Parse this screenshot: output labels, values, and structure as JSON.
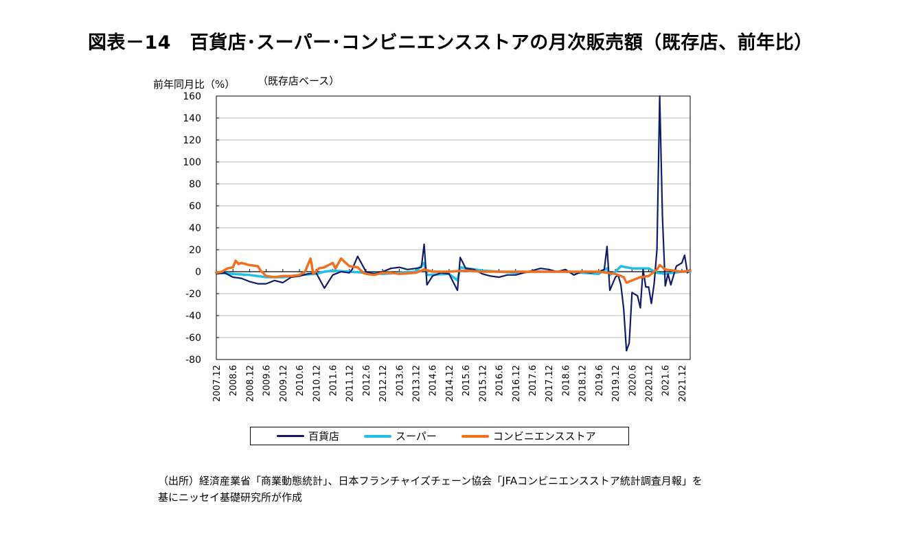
{
  "title": "図表－14　百貨店･スーパー･コンビニエンスストアの月次販売額（既存店、前年比）",
  "source": {
    "line1": "（出所）経済産業省「商業動態統計」、日本フランチャイズチェーン協会「JFAコンビニエンスストア統計調査月報」を",
    "line2": "基にニッセイ基礎研究所が作成"
  },
  "chart_data": {
    "type": "line",
    "ylabel": "前年同月比（%）",
    "annotation": "（既存店ベース）",
    "ylim": [
      -80,
      160
    ],
    "yticks": [
      160,
      140,
      120,
      100,
      80,
      60,
      40,
      20,
      0,
      -20,
      -40,
      -60,
      -80
    ],
    "xlim": [
      "2007.12",
      "2022.3"
    ],
    "x_tick_labels": [
      "2007.12",
      "2008.6",
      "2008.12",
      "2009.6",
      "2009.12",
      "2010.6",
      "2010.12",
      "2011.6",
      "2011.12",
      "2012.6",
      "2012.12",
      "2013.6",
      "2013.12",
      "2014.6",
      "2014.12",
      "2015.6",
      "2015.12",
      "2016.6",
      "2016.12",
      "2017.6",
      "2017.12",
      "2018.6",
      "2018.12",
      "2019.6",
      "2019.12",
      "2020.6",
      "2020.12",
      "2021.6",
      "2021.12"
    ],
    "grid": true,
    "legend_position": "bottom",
    "series": [
      {
        "name": "百貨店",
        "color": "#0f1a6b",
        "points": [
          [
            "2007.12",
            -2
          ],
          [
            "2008.3",
            -1
          ],
          [
            "2008.6",
            -5
          ],
          [
            "2008.9",
            -6
          ],
          [
            "2008.12",
            -9
          ],
          [
            "2009.3",
            -11
          ],
          [
            "2009.6",
            -11
          ],
          [
            "2009.9",
            -8
          ],
          [
            "2009.12",
            -10
          ],
          [
            "2010.3",
            -5
          ],
          [
            "2010.6",
            -4
          ],
          [
            "2010.9",
            -2
          ],
          [
            "2010.12",
            -1
          ],
          [
            "2011.3",
            -15
          ],
          [
            "2011.6",
            -3
          ],
          [
            "2011.9",
            0
          ],
          [
            "2011.12",
            -1
          ],
          [
            "2012.1",
            2
          ],
          [
            "2012.3",
            14
          ],
          [
            "2012.6",
            0
          ],
          [
            "2012.9",
            -2
          ],
          [
            "2012.12",
            0
          ],
          [
            "2013.3",
            3
          ],
          [
            "2013.6",
            4
          ],
          [
            "2013.9",
            2
          ],
          [
            "2013.12",
            3
          ],
          [
            "2014.2",
            4
          ],
          [
            "2014.3",
            25
          ],
          [
            "2014.4",
            -12
          ],
          [
            "2014.6",
            -4
          ],
          [
            "2014.9",
            -1
          ],
          [
            "2014.12",
            -2
          ],
          [
            "2015.3",
            -17
          ],
          [
            "2015.4",
            13
          ],
          [
            "2015.6",
            3
          ],
          [
            "2015.9",
            2
          ],
          [
            "2015.12",
            -2
          ],
          [
            "2016.3",
            -4
          ],
          [
            "2016.6",
            -5
          ],
          [
            "2016.9",
            -3
          ],
          [
            "2016.12",
            -3
          ],
          [
            "2017.3",
            -1
          ],
          [
            "2017.6",
            1
          ],
          [
            "2017.9",
            3
          ],
          [
            "2017.12",
            2
          ],
          [
            "2018.3",
            0
          ],
          [
            "2018.6",
            2
          ],
          [
            "2018.9",
            -3
          ],
          [
            "2018.12",
            0
          ],
          [
            "2019.3",
            -1
          ],
          [
            "2019.6",
            0
          ],
          [
            "2019.8",
            2
          ],
          [
            "2019.9",
            23
          ],
          [
            "2019.10",
            -17
          ],
          [
            "2019.12",
            -5
          ],
          [
            "2020.1",
            -3
          ],
          [
            "2020.2",
            -12
          ],
          [
            "2020.3",
            -34
          ],
          [
            "2020.4",
            -72
          ],
          [
            "2020.5",
            -65
          ],
          [
            "2020.6",
            -19
          ],
          [
            "2020.8",
            -22
          ],
          [
            "2020.9",
            -33
          ],
          [
            "2020.10",
            2
          ],
          [
            "2020.11",
            -14
          ],
          [
            "2020.12",
            -14
          ],
          [
            "2021.1",
            -29
          ],
          [
            "2021.2",
            -11
          ],
          [
            "2021.3",
            20
          ],
          [
            "2021.4",
            160
          ],
          [
            "2021.5",
            50
          ],
          [
            "2021.6",
            -13
          ],
          [
            "2021.7",
            -2
          ],
          [
            "2021.8",
            -12
          ],
          [
            "2021.10",
            5
          ],
          [
            "2021.12",
            8
          ],
          [
            "2022.1",
            15
          ],
          [
            "2022.2",
            -1
          ],
          [
            "2022.3",
            2
          ]
        ]
      },
      {
        "name": "スーパー",
        "color": "#1fbfe6",
        "points": [
          [
            "2007.12",
            -1
          ],
          [
            "2008.6",
            -2
          ],
          [
            "2008.12",
            -3
          ],
          [
            "2009.3",
            -4
          ],
          [
            "2009.6",
            -5
          ],
          [
            "2009.12",
            -5
          ],
          [
            "2010.6",
            -3
          ],
          [
            "2010.12",
            -2
          ],
          [
            "2011.3",
            0
          ],
          [
            "2011.6",
            1
          ],
          [
            "2011.12",
            0
          ],
          [
            "2012.6",
            -1
          ],
          [
            "2012.12",
            -2
          ],
          [
            "2013.6",
            -1
          ],
          [
            "2013.12",
            0
          ],
          [
            "2014.3",
            8
          ],
          [
            "2014.4",
            -3
          ],
          [
            "2014.12",
            -2
          ],
          [
            "2015.3",
            -8
          ],
          [
            "2015.4",
            4
          ],
          [
            "2015.12",
            1
          ],
          [
            "2016.6",
            0
          ],
          [
            "2016.12",
            -1
          ],
          [
            "2017.6",
            0
          ],
          [
            "2017.12",
            0
          ],
          [
            "2018.6",
            0
          ],
          [
            "2018.12",
            -1
          ],
          [
            "2019.6",
            -2
          ],
          [
            "2019.9",
            3
          ],
          [
            "2019.10",
            -3
          ],
          [
            "2019.12",
            0
          ],
          [
            "2020.2",
            5
          ],
          [
            "2020.6",
            3
          ],
          [
            "2020.9",
            3
          ],
          [
            "2020.12",
            3
          ],
          [
            "2021.3",
            -1
          ],
          [
            "2021.6",
            -2
          ],
          [
            "2021.12",
            0
          ],
          [
            "2022.3",
            0
          ]
        ]
      },
      {
        "name": "コンビニエンスストア",
        "color": "#f07020",
        "points": [
          [
            "2007.12",
            -1
          ],
          [
            "2008.2",
            0
          ],
          [
            "2008.4",
            3
          ],
          [
            "2008.6",
            4
          ],
          [
            "2008.7",
            10
          ],
          [
            "2008.8",
            7
          ],
          [
            "2008.9",
            8
          ],
          [
            "2008.12",
            6
          ],
          [
            "2009.3",
            5
          ],
          [
            "2009.4",
            1
          ],
          [
            "2009.6",
            -4
          ],
          [
            "2009.9",
            -5
          ],
          [
            "2009.12",
            -4
          ],
          [
            "2010.3",
            -4
          ],
          [
            "2010.6",
            -3
          ],
          [
            "2010.8",
            0
          ],
          [
            "2010.10",
            12
          ],
          [
            "2010.11",
            -2
          ],
          [
            "2011.1",
            3
          ],
          [
            "2011.3",
            4
          ],
          [
            "2011.6",
            8
          ],
          [
            "2011.7",
            3
          ],
          [
            "2011.9",
            12
          ],
          [
            "2011.12",
            5
          ],
          [
            "2012.3",
            4
          ],
          [
            "2012.5",
            -1
          ],
          [
            "2012.6",
            -2
          ],
          [
            "2012.9",
            -3
          ],
          [
            "2012.12",
            -1
          ],
          [
            "2013.3",
            -1
          ],
          [
            "2013.6",
            -2
          ],
          [
            "2013.12",
            -1
          ],
          [
            "2014.3",
            2
          ],
          [
            "2014.6",
            0
          ],
          [
            "2014.12",
            0
          ],
          [
            "2015.6",
            1
          ],
          [
            "2015.12",
            0
          ],
          [
            "2016.6",
            0
          ],
          [
            "2016.12",
            0
          ],
          [
            "2017.6",
            0
          ],
          [
            "2017.12",
            0
          ],
          [
            "2018.6",
            0
          ],
          [
            "2018.12",
            0
          ],
          [
            "2019.6",
            0
          ],
          [
            "2019.12",
            -2
          ],
          [
            "2020.3",
            -5
          ],
          [
            "2020.4",
            -10
          ],
          [
            "2020.6",
            -8
          ],
          [
            "2020.9",
            -5
          ],
          [
            "2020.12",
            -4
          ],
          [
            "2021.3",
            2
          ],
          [
            "2021.4",
            6
          ],
          [
            "2021.6",
            2
          ],
          [
            "2021.9",
            1
          ],
          [
            "2021.12",
            0
          ],
          [
            "2022.3",
            1
          ]
        ]
      }
    ]
  }
}
